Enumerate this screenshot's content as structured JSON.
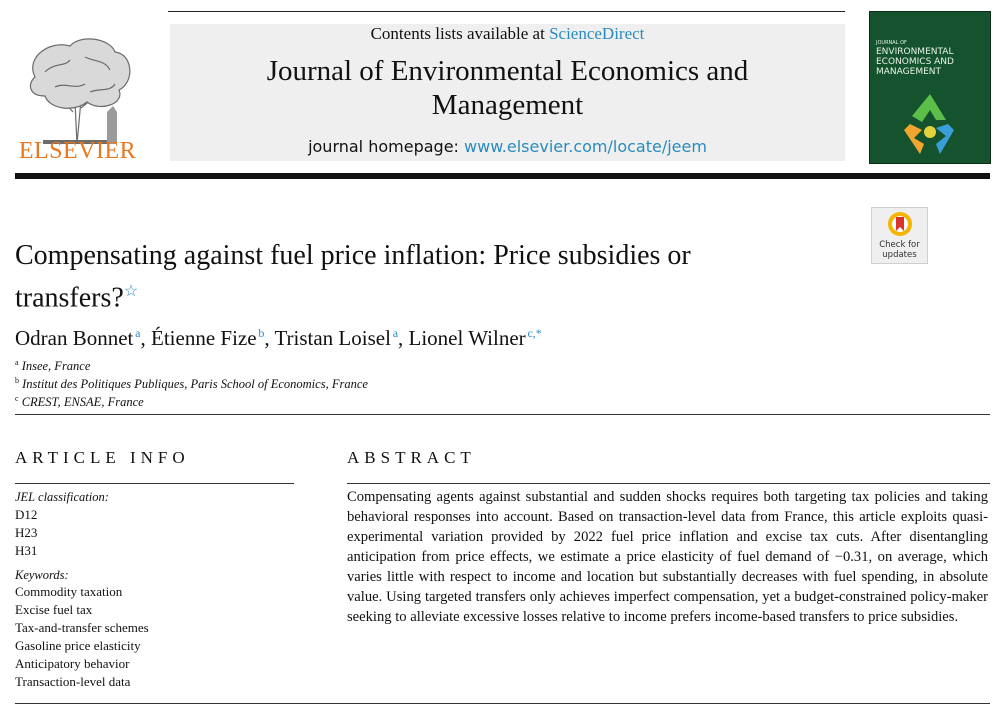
{
  "header": {
    "contents_prefix": "Contents lists available at ",
    "contents_link": "ScienceDirect",
    "journal_title_line1": "Journal of Environmental Economics and",
    "journal_title_line2": "Management",
    "homepage_prefix": "journal homepage: ",
    "homepage_url": "www.elsevier.com/locate/jeem",
    "publisher": "ELSEVIER",
    "cover": {
      "small_line": "JOURNAL OF",
      "title_line1": "ENVIRONMENTAL",
      "title_line2": "ECONOMICS AND",
      "title_line3": "MANAGEMENT"
    },
    "check_updates_line1": "Check for",
    "check_updates_line2": "updates"
  },
  "article": {
    "title_line1": "Compensating against fuel price inflation: Price subsidies or",
    "title_line2": "transfers?",
    "title_mark": "☆",
    "authors": [
      {
        "name": "Odran Bonnet",
        "sup": "a"
      },
      {
        "name": "Étienne Fize",
        "sup": "b"
      },
      {
        "name": "Tristan Loisel",
        "sup": "a"
      },
      {
        "name": "Lionel Wilner",
        "sup": "c,*"
      }
    ],
    "affiliations": [
      {
        "mark": "a",
        "text": "Insee,  France"
      },
      {
        "mark": "b",
        "text": "Institut des Politiques Publiques, Paris School of Economics, France"
      },
      {
        "mark": "c",
        "text": "CREST,  ENSAE,  France"
      }
    ]
  },
  "info": {
    "heading": "ARTICLE INFO",
    "jel_label": "JEL classification:",
    "jel_codes": [
      "D12",
      "H23",
      "H31"
    ],
    "keywords_label": "Keywords:",
    "keywords": [
      "Commodity taxation",
      "Excise fuel tax",
      "Tax-and-transfer schemes",
      "Gasoline price elasticity",
      "Anticipatory behavior",
      "Transaction-level data"
    ]
  },
  "abstract": {
    "heading": "ABSTRACT",
    "text": "Compensating agents against substantial and sudden shocks requires both targeting tax policies and taking behavioral responses into account. Based on transaction-level data from France, this article exploits quasi-experimental variation provided by 2022 fuel price inflation and excise tax cuts. After disentangling anticipation from price effects, we estimate a price elasticity of fuel demand of −0.31, on average, which varies little with respect to income and location but substantially decreases with fuel spending, in absolute value. Using targeted transfers only achieves imperfect compensation, yet a budget-constrained policy-maker seeking to alleviate excessive losses relative to income prefers income-based transfers to price subsidies."
  },
  "colors": {
    "link": "#2a8bbf",
    "elsevier_orange": "#e8771f",
    "cover_green": "#14532d"
  }
}
